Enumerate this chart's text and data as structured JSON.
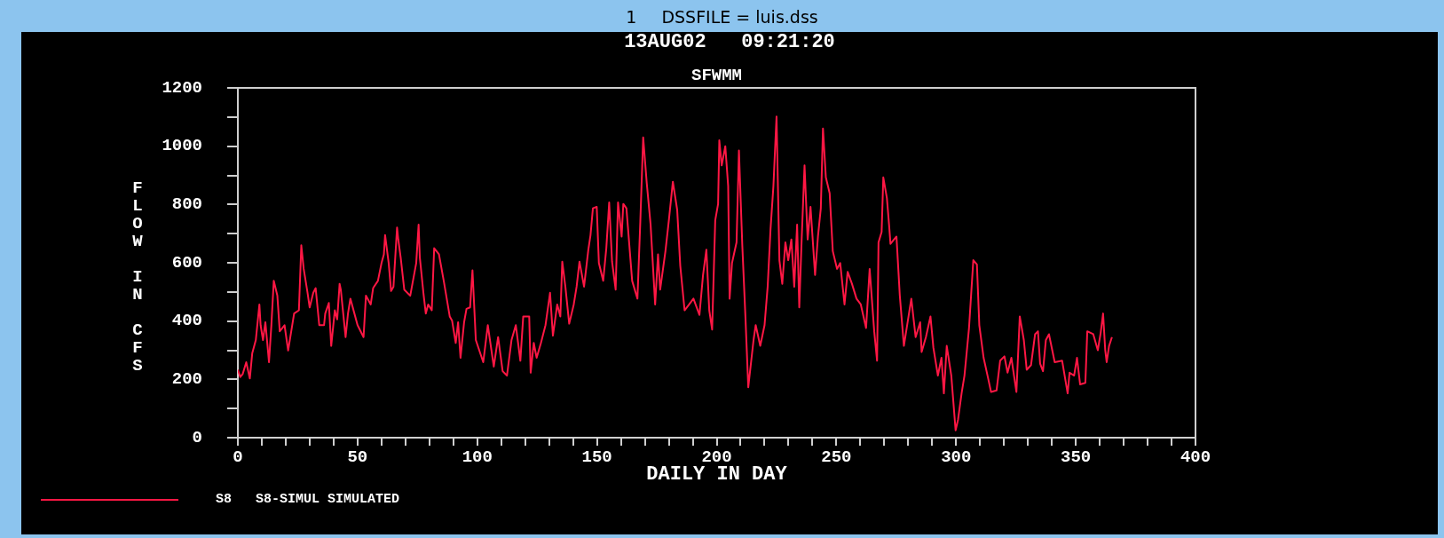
{
  "chart_data": {
    "type": "line",
    "title": "SFWMM",
    "subtitle": "13AUG02   09:21:20",
    "xlabel": "DAILY IN DAY",
    "ylabel": "FLOW IN CFS",
    "annotations": [
      "1",
      "DSSFILE = luis.dss"
    ],
    "legend": "bottom left",
    "marker": "none",
    "line_style": "solid",
    "xlim": [
      0,
      400
    ],
    "ylim": [
      0,
      1200
    ],
    "xticks": [
      0,
      {
        "value": 10,
        "label": null
      },
      {
        "value": 20,
        "label": null
      },
      {
        "value": 30,
        "label": null
      },
      {
        "value": 40,
        "label": null
      },
      50,
      {
        "value": 60,
        "label": null
      },
      {
        "value": 70,
        "label": null
      },
      {
        "value": 80,
        "label": null
      },
      {
        "value": 90,
        "label": null
      },
      100,
      {
        "value": 110,
        "label": null
      },
      {
        "value": 120,
        "label": null
      },
      {
        "value": 130,
        "label": null
      },
      {
        "value": 140,
        "label": null
      },
      150,
      {
        "value": 160,
        "label": null
      },
      {
        "value": 170,
        "label": null
      },
      {
        "value": 180,
        "label": null
      },
      {
        "value": 190,
        "label": null
      },
      200,
      {
        "value": 210,
        "label": null
      },
      {
        "value": 220,
        "label": null
      },
      {
        "value": 230,
        "label": null
      },
      {
        "value": 240,
        "label": null
      },
      250,
      {
        "value": 260,
        "label": null
      },
      {
        "value": 270,
        "label": null
      },
      {
        "value": 280,
        "label": null
      },
      {
        "value": 290,
        "label": null
      },
      300,
      {
        "value": 310,
        "label": null
      },
      {
        "value": 320,
        "label": null
      },
      {
        "value": 330,
        "label": null
      },
      {
        "value": 340,
        "label": null
      },
      350,
      {
        "value": 360,
        "label": null
      },
      {
        "value": 370,
        "label": null
      },
      {
        "value": 380,
        "label": null
      },
      {
        "value": 390,
        "label": null
      },
      400
    ],
    "yticks": [
      0,
      {
        "value": 100,
        "label": null
      },
      200,
      {
        "value": 300,
        "label": null
      },
      400,
      {
        "value": 500,
        "label": null
      },
      600,
      {
        "value": 700,
        "label": null
      },
      800,
      {
        "value": 900,
        "label": null
      },
      1000,
      {
        "value": 1100,
        "label": null
      },
      1200
    ],
    "x": [
      0,
      1,
      2,
      3.5,
      5,
      6,
      7.5,
      9,
      9.5,
      10.5,
      11.5,
      13,
      14,
      15,
      16.5,
      17.5,
      19.5,
      21,
      23.5,
      25.5,
      26.5,
      27.5,
      29,
      30,
      31.5,
      32.5,
      34,
      36,
      36.5,
      38,
      39,
      40.5,
      41.5,
      42.5,
      43,
      45,
      46,
      47,
      50,
      52.5,
      53.5,
      55.5,
      56.5,
      58.5,
      60,
      61,
      61.5,
      63,
      64,
      65,
      66.5,
      67,
      68,
      69.5,
      72,
      74.5,
      75.5,
      76,
      77.5,
      78.5,
      79.5,
      81,
      82,
      84,
      86,
      88.5,
      89.5,
      91,
      92,
      93,
      94.5,
      95.5,
      97,
      98,
      99.4,
      102.5,
      104.4,
      106.9,
      108.7,
      110.6,
      112.4,
      114.3,
      116.1,
      118,
      119.2,
      121.7,
      122.3,
      123.6,
      124.8,
      126.6,
      128.5,
      130.4,
      131.6,
      133.4,
      134.7,
      135.5,
      136.8,
      138.4,
      140.3,
      141.5,
      142.7,
      144.6,
      146.4,
      147.3,
      148.3,
      149.9,
      150.8,
      152.6,
      153.9,
      155.1,
      156.3,
      157.8,
      158.8,
      160.3,
      161,
      162.3,
      164.7,
      166.9,
      168.1,
      169.3,
      170.8,
      172.4,
      174.3,
      175.5,
      176.4,
      178.6,
      180.1,
      181.7,
      183.5,
      184.8,
      186.6,
      188.5,
      190.3,
      192.8,
      194.3,
      195.7,
      196.9,
      198.1,
      199.4,
      200.6,
      201.1,
      202.1,
      203.6,
      204.8,
      205.4,
      206.4,
      208.3,
      209.3,
      210.7,
      212,
      213.2,
      215.4,
      216.3,
      218.2,
      220,
      221.3,
      222.5,
      223.7,
      225,
      226.2,
      227.4,
      228.7,
      229.9,
      231.2,
      232.4,
      233.6,
      234.5,
      235.5,
      236.7,
      238,
      239.2,
      241.1,
      242.3,
      243.5,
      244.4,
      245.6,
      247.2,
      248.5,
      250.3,
      251.6,
      253.4,
      254.7,
      256.5,
      258.4,
      260.2,
      262.4,
      263.9,
      265.8,
      267,
      267.6,
      268.9,
      269.6,
      271.1,
      272,
      272.6,
      275.1,
      276.5,
      278.2,
      281.3,
      283.1,
      285,
      285.6,
      287.4,
      289.3,
      290.5,
      292.4,
      293.9,
      294.9,
      296.1,
      298,
      299.8,
      300.8,
      302.3,
      303.5,
      305.4,
      307.2,
      308.7,
      309.7,
      311.5,
      313.4,
      314.6,
      316.9,
      318.4,
      320.2,
      321.5,
      323.1,
      325.2,
      326.6,
      328.3,
      329.5,
      331.3,
      333,
      334.2,
      335.1,
      336.3,
      337.5,
      338.8,
      341.2,
      344.3,
      346.6,
      347.4,
      349.3,
      350.5,
      351.8,
      354,
      354.8,
      357.3,
      359.2,
      360.4,
      361.4,
      362.3,
      362.9,
      363.9,
      365.1
    ],
    "series": [
      {
        "name": "S8   S8-SIMUL SIMULATED",
        "color": "#ff1744",
        "values": [
          233,
          208,
          218,
          259,
          203,
          289,
          335,
          457,
          386,
          335,
          396,
          259,
          386,
          538,
          487,
          365,
          386,
          299,
          426,
          437,
          660,
          579,
          503,
          447,
          497,
          513,
          386,
          386,
          426,
          462,
          315,
          437,
          406,
          528,
          508,
          345,
          426,
          477,
          386,
          345,
          487,
          457,
          513,
          538,
          599,
          629,
          695,
          599,
          503,
          518,
          721,
          680,
          619,
          508,
          487,
          599,
          731,
          619,
          497,
          426,
          457,
          437,
          650,
          629,
          538,
          416,
          401,
          325,
          396,
          274,
          396,
          442,
          447,
          574,
          335,
          259,
          386,
          244,
          345,
          228,
          213,
          335,
          386,
          264,
          416,
          416,
          223,
          325,
          274,
          325,
          386,
          497,
          350,
          457,
          416,
          604,
          518,
          391,
          457,
          518,
          604,
          518,
          645,
          695,
          787,
          792,
          599,
          538,
          650,
          807,
          604,
          508,
          807,
          690,
          802,
          787,
          538,
          477,
          741,
          1030,
          873,
          731,
          457,
          629,
          508,
          640,
          751,
          878,
          782,
          589,
          437,
          457,
          477,
          421,
          558,
          645,
          437,
          371,
          746,
          802,
          1020,
          934,
          1000,
          863,
          477,
          599,
          670,
          985,
          660,
          416,
          173,
          335,
          386,
          315,
          386,
          518,
          716,
          863,
          1102,
          609,
          528,
          670,
          609,
          680,
          518,
          731,
          447,
          680,
          934,
          680,
          792,
          558,
          690,
          787,
          1061,
          893,
          838,
          640,
          579,
          599,
          457,
          569,
          528,
          477,
          457,
          376,
          579,
          365,
          264,
          670,
          706,
          893,
          822,
          731,
          665,
          690,
          487,
          315,
          477,
          345,
          396,
          294,
          345,
          416,
          310,
          213,
          274,
          152,
          315,
          213,
          25,
          61,
          152,
          213,
          376,
          609,
          594,
          386,
          274,
          203,
          157,
          162,
          264,
          279,
          223,
          274,
          157,
          416,
          335,
          233,
          249,
          355,
          365,
          254,
          228,
          335,
          355,
          259,
          264,
          152,
          223,
          213,
          274,
          183,
          188,
          365,
          355,
          300,
          360,
          426,
          300,
          259,
          315,
          345
        ]
      }
    ]
  }
}
